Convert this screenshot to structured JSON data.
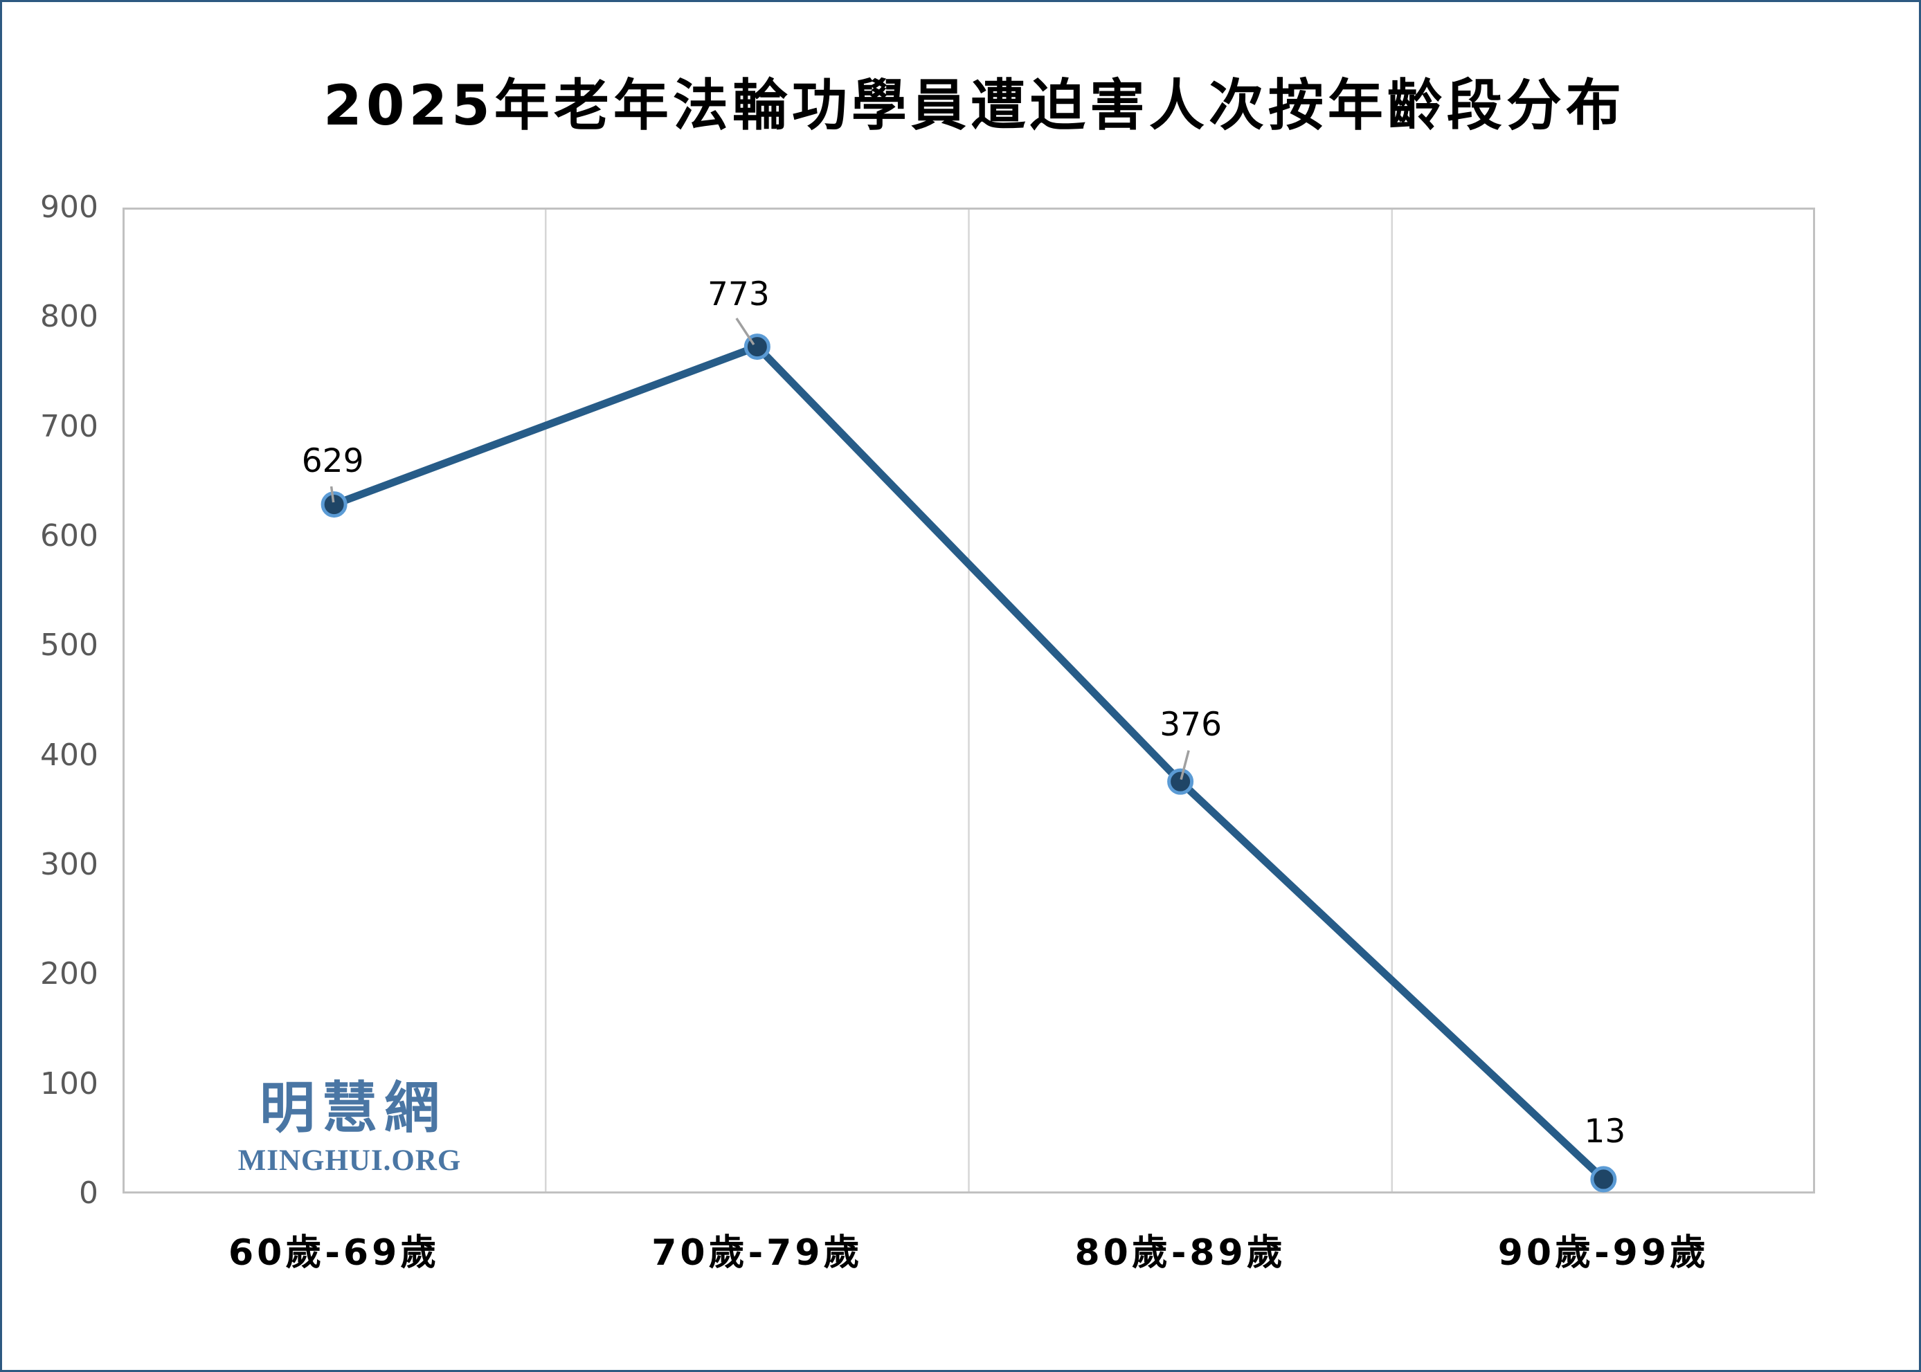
{
  "title": "2025年老年法輪功學員遭迫害人次按年齡段分布",
  "watermark": {
    "cjk": "明慧網",
    "latin": "MINGHUI.ORG",
    "color": "#4a76a4"
  },
  "colors": {
    "frame_border": "#2d5981",
    "plot_border": "#c1c1c1",
    "gridline": "#d6d6d6",
    "series_line": "#275c88",
    "marker_fill": "#1f4566",
    "marker_ring": "#5b9bd5",
    "leader_line": "#a0a0a0",
    "y_tick_text": "#595959",
    "x_label_text": "#000000",
    "data_label_text": "#000000"
  },
  "chart_data": {
    "type": "line",
    "title": "2025年老年法輪功學員遭迫害人次按年齡段分布",
    "categories": [
      "60歲-69歲",
      "70歲-79歲",
      "80歲-89歲",
      "90歲-99歲"
    ],
    "values": [
      629,
      773,
      376,
      13
    ],
    "data_labels": [
      "629",
      "773",
      "376",
      "13"
    ],
    "xlabel": "",
    "ylabel": "",
    "ylim": [
      0,
      900
    ],
    "yticks": [
      0,
      100,
      200,
      300,
      400,
      500,
      600,
      700,
      800,
      900
    ],
    "grid": "vertical-category-boundaries-only",
    "legend": "none",
    "marker": "circle"
  }
}
